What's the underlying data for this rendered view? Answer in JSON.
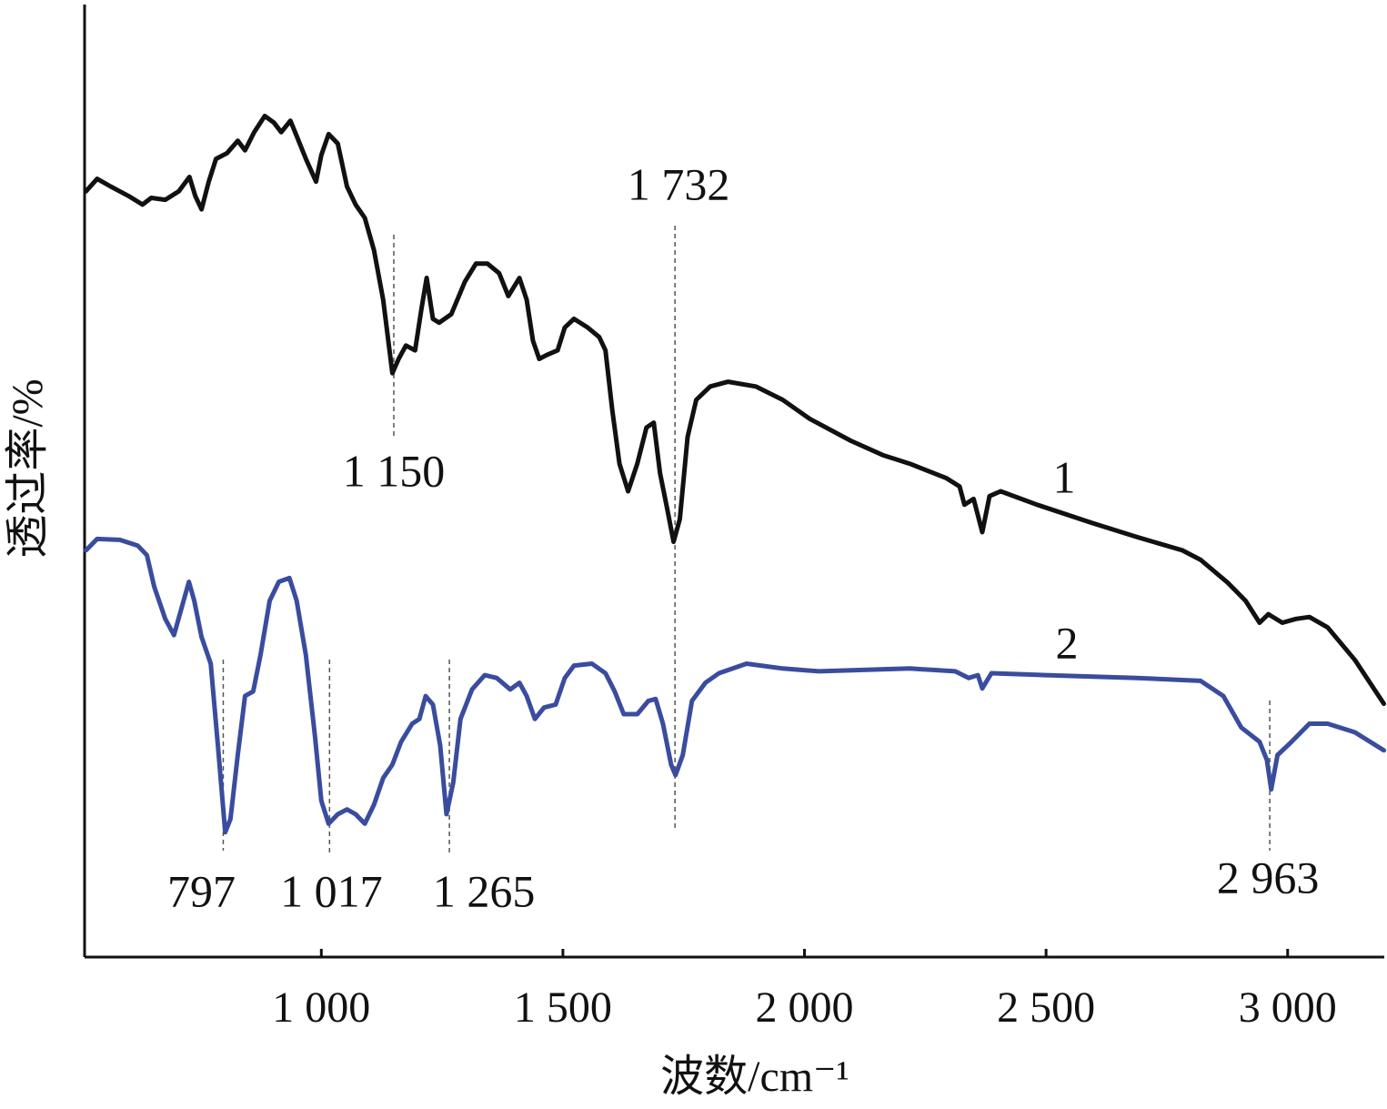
{
  "chart_data": {
    "type": "line",
    "xlabel": "波数/cm⁻¹",
    "ylabel": "透过率/%",
    "xlim": [
      510,
      3200
    ],
    "ylim": [
      0,
      100
    ],
    "xticks": [
      {
        "value": 1000,
        "label": "1 000"
      },
      {
        "value": 1500,
        "label": "1 500"
      },
      {
        "value": 2000,
        "label": "2 000"
      },
      {
        "value": 2500,
        "label": "2 500"
      },
      {
        "value": 3000,
        "label": "3 000"
      }
    ],
    "series": [
      {
        "name": "1",
        "color": "#111111",
        "x": [
          513,
          536,
          564,
          601,
          630,
          648,
          677,
          705,
          727,
          739,
          752,
          767,
          782,
          805,
          827,
          842,
          861,
          883,
          902,
          917,
          936,
          949,
          968,
          989,
          1000,
          1015,
          1034,
          1053,
          1071,
          1090,
          1109,
          1128,
          1147,
          1160,
          1175,
          1194,
          1207,
          1218,
          1231,
          1244,
          1269,
          1297,
          1320,
          1344,
          1368,
          1387,
          1410,
          1425,
          1438,
          1451,
          1466,
          1489,
          1504,
          1523,
          1551,
          1575,
          1588,
          1602,
          1617,
          1635,
          1654,
          1673,
          1688,
          1701,
          1716,
          1729,
          1742,
          1758,
          1776,
          1805,
          1842,
          1899,
          1955,
          2011,
          2096,
          2162,
          2218,
          2293,
          2321,
          2331,
          2350,
          2368,
          2383,
          2406,
          2481,
          2594,
          2688,
          2782,
          2820,
          2876,
          2913,
          2942,
          2960,
          2989,
          3017,
          3045,
          3083,
          3139,
          3199
        ],
        "values": [
          80.4,
          81.7,
          80.9,
          79.9,
          79.0,
          79.7,
          79.5,
          80.4,
          81.9,
          79.9,
          78.5,
          81.4,
          83.8,
          84.4,
          85.7,
          84.7,
          86.6,
          88.3,
          87.6,
          86.6,
          87.8,
          86.2,
          83.8,
          81.4,
          84.2,
          86.4,
          85.4,
          80.9,
          79.0,
          77.6,
          74.2,
          69.0,
          61.3,
          62.8,
          64.2,
          63.7,
          68.0,
          71.3,
          67.0,
          66.6,
          67.5,
          70.9,
          72.8,
          72.8,
          71.8,
          69.4,
          71.3,
          69.0,
          64.7,
          62.8,
          63.2,
          63.7,
          66.1,
          67.0,
          66.1,
          65.1,
          63.7,
          57.5,
          51.8,
          48.9,
          51.8,
          55.6,
          56.1,
          50.8,
          47.0,
          43.6,
          46.0,
          54.6,
          58.5,
          59.9,
          60.4,
          59.9,
          58.5,
          56.5,
          54.2,
          52.7,
          51.8,
          50.3,
          49.4,
          47.5,
          48.1,
          44.6,
          48.4,
          48.9,
          47.5,
          45.6,
          44.1,
          42.7,
          41.7,
          39.3,
          37.4,
          35.1,
          36.0,
          35.1,
          35.5,
          35.7,
          34.6,
          31.2,
          26.6
        ]
      },
      {
        "name": "2",
        "color": "#3a4c9e",
        "x": [
          513,
          536,
          583,
          620,
          639,
          654,
          677,
          695,
          710,
          726,
          737,
          752,
          771,
          786,
          801,
          812,
          827,
          842,
          859,
          874,
          893,
          912,
          934,
          949,
          968,
          987,
          1000,
          1015,
          1034,
          1053,
          1071,
          1090,
          1109,
          1128,
          1147,
          1165,
          1188,
          1203,
          1216,
          1231,
          1246,
          1259,
          1273,
          1288,
          1312,
          1338,
          1363,
          1391,
          1410,
          1425,
          1442,
          1461,
          1485,
          1504,
          1523,
          1560,
          1588,
          1607,
          1626,
          1654,
          1677,
          1692,
          1707,
          1724,
          1733,
          1748,
          1767,
          1795,
          1823,
          1880,
          1955,
          2030,
          2218,
          2312,
          2340,
          2359,
          2368,
          2387,
          2500,
          2688,
          2820,
          2867,
          2904,
          2942,
          2957,
          2966,
          2979,
          3008,
          3045,
          3083,
          3139,
          3199
        ],
        "values": [
          42.7,
          43.9,
          43.8,
          43.2,
          42.2,
          38.9,
          35.5,
          33.8,
          36.5,
          39.4,
          37.4,
          33.6,
          30.8,
          22.2,
          13.1,
          14.5,
          21.2,
          27.4,
          27.9,
          31.7,
          37.4,
          39.4,
          39.8,
          37.4,
          31.7,
          23.1,
          16.4,
          14.0,
          15.0,
          15.5,
          15.0,
          14.0,
          16.0,
          18.8,
          20.2,
          22.6,
          24.5,
          25.0,
          27.4,
          26.5,
          22.2,
          15.0,
          18.3,
          25.0,
          28.1,
          29.6,
          29.3,
          28.1,
          28.8,
          27.4,
          25.0,
          26.2,
          26.5,
          29.3,
          30.6,
          30.8,
          29.8,
          27.9,
          25.5,
          25.5,
          26.9,
          27.1,
          24.5,
          20.2,
          19.1,
          21.2,
          26.9,
          28.8,
          29.8,
          30.8,
          30.3,
          30.0,
          30.3,
          30.0,
          29.3,
          29.6,
          28.2,
          29.8,
          29.6,
          29.3,
          29.0,
          27.4,
          24.1,
          22.6,
          20.7,
          17.6,
          21.2,
          22.6,
          24.5,
          24.5,
          23.6,
          21.7
        ]
      }
    ],
    "annotations": [
      {
        "text": "1 150",
        "x": 1150
      },
      {
        "text": "1 732",
        "x": 1732
      },
      {
        "text": "797",
        "x": 797
      },
      {
        "text": "1 017",
        "x": 1017
      },
      {
        "text": "1 265",
        "x": 1265
      },
      {
        "text": "2 963",
        "x": 2963
      }
    ]
  }
}
